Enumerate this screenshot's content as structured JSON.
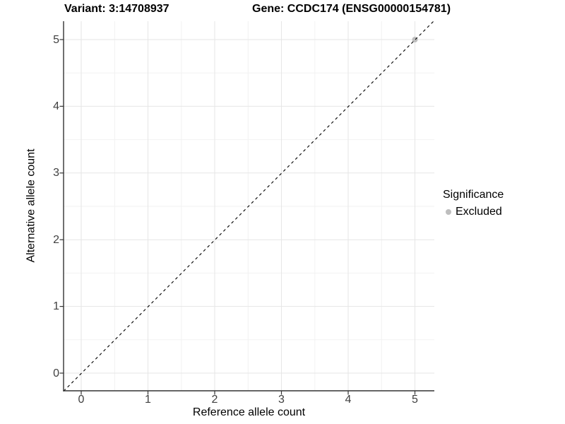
{
  "chart_data": {
    "type": "scatter",
    "titles": {
      "variant": "Variant: 3:14708937",
      "gene": "Gene: CCDC174 (ENSG00000154781)"
    },
    "xlabel": "Reference allele count",
    "ylabel": "Alternative allele count",
    "x_ticks": [
      "0",
      "1",
      "2",
      "3",
      "4",
      "5"
    ],
    "y_ticks": [
      "0",
      "1",
      "2",
      "3",
      "4",
      "5"
    ],
    "xlim": [
      -0.27,
      5.36
    ],
    "ylim": [
      -0.27,
      5.27
    ],
    "grid": {
      "major": true,
      "minor": true,
      "major_color": "#e6e6e6",
      "minor_color": "#f2f2f2"
    },
    "reference_line": {
      "slope": 1,
      "intercept": 0,
      "style": "dashed",
      "color": "#000000"
    },
    "series": [
      {
        "name": "Excluded",
        "color": "#bebebe",
        "marker": "circle",
        "points": [
          [
            5,
            5
          ]
        ]
      }
    ],
    "legend": {
      "title": "Significance",
      "position": "right",
      "entries": [
        {
          "label": "Excluded",
          "color": "#bebebe",
          "marker": "circle"
        }
      ]
    },
    "panel": {
      "background": "#ffffff",
      "axis_line_color": "#333333",
      "tick_color": "#333333",
      "tick_label_color": "#404040"
    }
  }
}
